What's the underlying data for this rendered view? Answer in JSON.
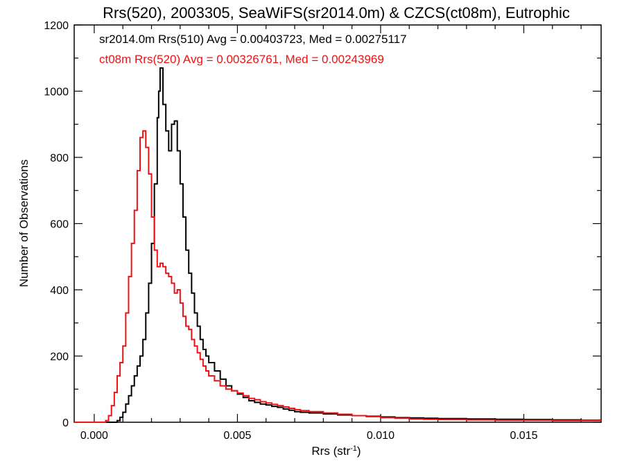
{
  "chart_data": {
    "type": "line",
    "title": "Rrs(520), 2003305, SeaWiFS(sr2014.0m) & CZCS(ct08m), Eutrophic",
    "xlabel": "Rrs (str",
    "xlabel_sup": "-1",
    "xlabel_close": ")",
    "ylabel": "Number of Observations",
    "xlim": [
      -0.0007,
      0.0177
    ],
    "ylim": [
      0,
      1200
    ],
    "x_ticks": [
      "0.000",
      "0.005",
      "0.010",
      "0.015"
    ],
    "y_ticks": [
      "0",
      "200",
      "400",
      "600",
      "800",
      "1000",
      "1200"
    ],
    "grid": false,
    "series": [
      {
        "name": "sr2014.0m Rrs(510) Avg = 0.00403723, Med = 0.00275117",
        "color": "#000000",
        "points": [
          [
            -0.0007,
            0
          ],
          [
            0.0006,
            0
          ],
          [
            0.0008,
            5
          ],
          [
            0.0009,
            15
          ],
          [
            0.001,
            30
          ],
          [
            0.0011,
            55
          ],
          [
            0.0012,
            80
          ],
          [
            0.0013,
            110
          ],
          [
            0.0014,
            140
          ],
          [
            0.0015,
            170
          ],
          [
            0.0016,
            200
          ],
          [
            0.0017,
            250
          ],
          [
            0.0018,
            330
          ],
          [
            0.0019,
            420
          ],
          [
            0.002,
            540
          ],
          [
            0.0021,
            720
          ],
          [
            0.0022,
            920
          ],
          [
            0.00225,
            1000
          ],
          [
            0.0023,
            1070
          ],
          [
            0.0024,
            960
          ],
          [
            0.0025,
            880
          ],
          [
            0.0026,
            820
          ],
          [
            0.0027,
            900
          ],
          [
            0.0028,
            910
          ],
          [
            0.0029,
            820
          ],
          [
            0.003,
            720
          ],
          [
            0.0031,
            620
          ],
          [
            0.0032,
            520
          ],
          [
            0.0033,
            450
          ],
          [
            0.0034,
            390
          ],
          [
            0.0035,
            330
          ],
          [
            0.0036,
            290
          ],
          [
            0.0037,
            250
          ],
          [
            0.0038,
            220
          ],
          [
            0.0039,
            200
          ],
          [
            0.004,
            180
          ],
          [
            0.0042,
            155
          ],
          [
            0.0044,
            130
          ],
          [
            0.0046,
            110
          ],
          [
            0.0048,
            95
          ],
          [
            0.005,
            85
          ],
          [
            0.0052,
            75
          ],
          [
            0.0054,
            65
          ],
          [
            0.0056,
            60
          ],
          [
            0.0058,
            55
          ],
          [
            0.006,
            52
          ],
          [
            0.0062,
            48
          ],
          [
            0.0064,
            45
          ],
          [
            0.0066,
            40
          ],
          [
            0.0068,
            36
          ],
          [
            0.007,
            32
          ],
          [
            0.0072,
            30
          ],
          [
            0.0075,
            28
          ],
          [
            0.008,
            25
          ],
          [
            0.0085,
            22
          ],
          [
            0.009,
            20
          ],
          [
            0.0095,
            18
          ],
          [
            0.01,
            16
          ],
          [
            0.0105,
            14
          ],
          [
            0.011,
            13
          ],
          [
            0.0115,
            12
          ],
          [
            0.012,
            11
          ],
          [
            0.013,
            10
          ],
          [
            0.014,
            9
          ],
          [
            0.015,
            8
          ],
          [
            0.016,
            7
          ],
          [
            0.017,
            6
          ],
          [
            0.0177,
            6
          ]
        ]
      },
      {
        "name": "ct08m Rrs(520) Avg = 0.00326761, Med = 0.00243969",
        "color": "#ee1111",
        "points": [
          [
            -0.0007,
            0
          ],
          [
            0.0003,
            0
          ],
          [
            0.0004,
            5
          ],
          [
            0.0005,
            20
          ],
          [
            0.0006,
            50
          ],
          [
            0.0007,
            90
          ],
          [
            0.0008,
            140
          ],
          [
            0.0009,
            180
          ],
          [
            0.001,
            230
          ],
          [
            0.0011,
            330
          ],
          [
            0.0012,
            440
          ],
          [
            0.0013,
            540
          ],
          [
            0.0014,
            640
          ],
          [
            0.0015,
            760
          ],
          [
            0.0016,
            860
          ],
          [
            0.0017,
            880
          ],
          [
            0.0018,
            830
          ],
          [
            0.0019,
            750
          ],
          [
            0.002,
            620
          ],
          [
            0.0021,
            520
          ],
          [
            0.0022,
            470
          ],
          [
            0.0023,
            480
          ],
          [
            0.0024,
            470
          ],
          [
            0.0025,
            450
          ],
          [
            0.0026,
            440
          ],
          [
            0.0027,
            420
          ],
          [
            0.0028,
            390
          ],
          [
            0.0029,
            400
          ],
          [
            0.003,
            360
          ],
          [
            0.0031,
            320
          ],
          [
            0.0032,
            290
          ],
          [
            0.0033,
            280
          ],
          [
            0.0034,
            250
          ],
          [
            0.0035,
            230
          ],
          [
            0.0036,
            210
          ],
          [
            0.0037,
            190
          ],
          [
            0.0038,
            170
          ],
          [
            0.0039,
            155
          ],
          [
            0.004,
            140
          ],
          [
            0.0042,
            125
          ],
          [
            0.0044,
            110
          ],
          [
            0.0046,
            100
          ],
          [
            0.0048,
            95
          ],
          [
            0.005,
            88
          ],
          [
            0.0052,
            80
          ],
          [
            0.0054,
            72
          ],
          [
            0.0056,
            68
          ],
          [
            0.0058,
            62
          ],
          [
            0.006,
            58
          ],
          [
            0.0062,
            54
          ],
          [
            0.0064,
            50
          ],
          [
            0.0066,
            46
          ],
          [
            0.0068,
            42
          ],
          [
            0.007,
            38
          ],
          [
            0.0072,
            35
          ],
          [
            0.0075,
            32
          ],
          [
            0.008,
            28
          ],
          [
            0.0085,
            24
          ],
          [
            0.009,
            20
          ],
          [
            0.0095,
            17
          ],
          [
            0.01,
            14
          ],
          [
            0.0105,
            12
          ],
          [
            0.011,
            10
          ],
          [
            0.0115,
            9
          ],
          [
            0.012,
            8
          ],
          [
            0.013,
            7
          ],
          [
            0.014,
            6
          ],
          [
            0.015,
            6
          ],
          [
            0.016,
            5
          ],
          [
            0.017,
            5
          ],
          [
            0.0177,
            5
          ]
        ]
      }
    ]
  }
}
